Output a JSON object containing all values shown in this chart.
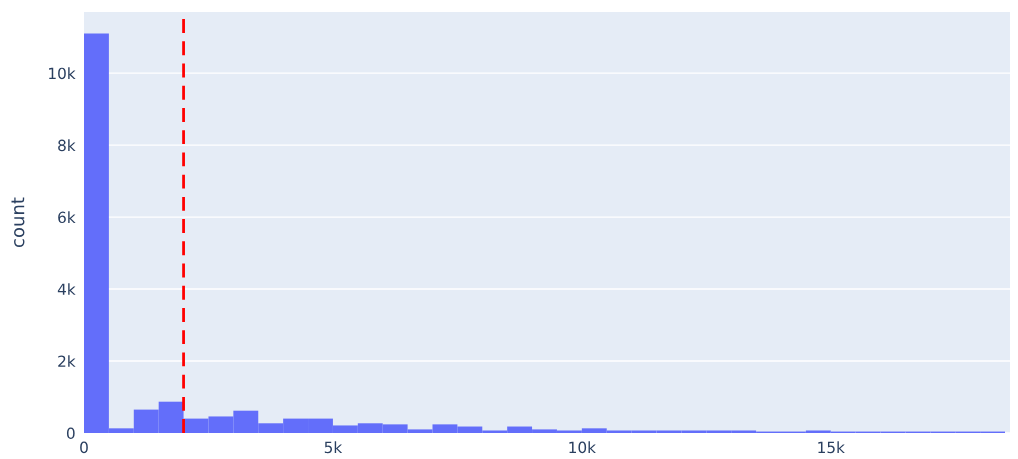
{
  "chart_data": {
    "type": "histogram",
    "ylabel": "count",
    "bins": [
      0,
      500,
      1000,
      1500,
      2000,
      2500,
      3000,
      3500,
      4000,
      4500,
      5000,
      5500,
      6000,
      6500,
      7000,
      7500,
      8000,
      8500,
      9000,
      9500,
      10000,
      10500,
      11000,
      11500,
      12000,
      12500,
      13000,
      13500,
      14000,
      14500,
      15000,
      15500,
      16000,
      16500,
      17000,
      17500,
      18000,
      18500
    ],
    "values": [
      11100,
      130,
      650,
      870,
      400,
      460,
      620,
      270,
      400,
      400,
      210,
      270,
      240,
      100,
      240,
      180,
      70,
      180,
      100,
      70,
      130,
      70,
      70,
      70,
      70,
      70,
      70,
      40,
      40,
      70,
      40,
      40,
      40,
      40,
      40,
      40,
      40
    ],
    "color": "#636efa",
    "xlim": [
      0,
      18600
    ],
    "ylim": [
      0,
      11700
    ],
    "xticks": [
      0,
      {
        "value": 5000,
        "label": "5k"
      },
      {
        "value": 10000,
        "label": "10k"
      },
      {
        "value": 15000,
        "label": "15k"
      }
    ],
    "yticks": [
      0,
      {
        "value": 2000,
        "label": "2k"
      },
      {
        "value": 4000,
        "label": "4k"
      },
      {
        "value": 6000,
        "label": "6k"
      },
      {
        "value": 8000,
        "label": "8k"
      },
      {
        "value": 10000,
        "label": "10k"
      }
    ],
    "ref_lines": [
      {
        "axis": "x",
        "value": 2000,
        "color": "#ff0000",
        "line_style": "dashed"
      }
    ],
    "grid": "y"
  }
}
